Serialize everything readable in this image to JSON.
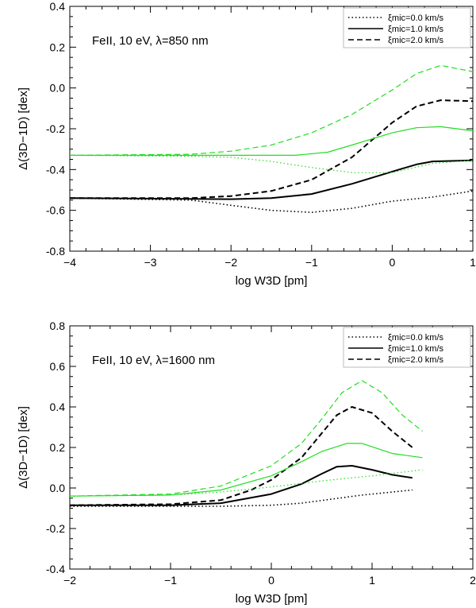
{
  "chart_data": [
    {
      "type": "line",
      "annotation": "FeII, 10 eV, λ=850 nm",
      "xlabel": "log W3D [pm]",
      "ylabel": "Δ(3D−1D) [dex]",
      "xlim": [
        -4,
        1
      ],
      "ylim": [
        -0.8,
        0.4
      ],
      "xticks": [
        -4,
        -3,
        -2,
        -1,
        0,
        1
      ],
      "xtick_labels": [
        "−4",
        "−3",
        "−2",
        "−1",
        "0",
        "1"
      ],
      "yticks": [
        -0.8,
        -0.6,
        -0.4,
        -0.2,
        0.0,
        0.2,
        0.4
      ],
      "ytick_labels": [
        "-0.8",
        "-0.6",
        "-0.4",
        "-0.2",
        "0.0",
        "0.2",
        "0.4"
      ],
      "legend": {
        "position": "top-right",
        "entries": [
          {
            "label": "ξmic=0.0 km/s",
            "style": "dotted"
          },
          {
            "label": "ξmic=1.0 km/s",
            "style": "solid"
          },
          {
            "label": "ξmic=2.0 km/s",
            "style": "dashed"
          }
        ]
      },
      "series": [
        {
          "name": "ξmic=0.0 km/s, 1",
          "color": "#000000",
          "style": "dotted",
          "width": 1.6,
          "x": [
            -4,
            -2.5,
            -2,
            -1.5,
            -1,
            -0.5,
            0,
            0.5,
            1
          ],
          "y": [
            -0.54,
            -0.55,
            -0.575,
            -0.6,
            -0.61,
            -0.59,
            -0.555,
            -0.535,
            -0.505
          ]
        },
        {
          "name": "ξmic=1.0 km/s, 1",
          "color": "#000000",
          "style": "solid",
          "width": 2,
          "x": [
            -4,
            -2,
            -1.5,
            -1,
            -0.5,
            0,
            0.3,
            0.5,
            1
          ],
          "y": [
            -0.54,
            -0.545,
            -0.54,
            -0.52,
            -0.47,
            -0.41,
            -0.375,
            -0.36,
            -0.355
          ]
        },
        {
          "name": "ξmic=2.0 km/s, 1",
          "color": "#000000",
          "style": "dashed",
          "width": 2,
          "x": [
            -4,
            -2.5,
            -2,
            -1.5,
            -1,
            -0.5,
            0,
            0.3,
            0.6,
            1
          ],
          "y": [
            -0.54,
            -0.54,
            -0.53,
            -0.505,
            -0.45,
            -0.34,
            -0.17,
            -0.09,
            -0.06,
            -0.065
          ]
        },
        {
          "name": "ξmic=0.0 km/s, 2",
          "color": "#22dd22",
          "style": "dotted",
          "width": 1.2,
          "x": [
            -4,
            -2.5,
            -2,
            -1.5,
            -1,
            -0.5,
            0,
            0.5,
            1
          ],
          "y": [
            -0.33,
            -0.335,
            -0.34,
            -0.36,
            -0.39,
            -0.415,
            -0.415,
            -0.37,
            -0.355
          ]
        },
        {
          "name": "ξmic=1.0 km/s, 2",
          "color": "#22dd22",
          "style": "solid",
          "width": 1.2,
          "x": [
            -4,
            -2,
            -1.2,
            -0.8,
            -0.5,
            0,
            0.3,
            0.6,
            1
          ],
          "y": [
            -0.33,
            -0.33,
            -0.33,
            -0.315,
            -0.28,
            -0.22,
            -0.195,
            -0.19,
            -0.21
          ]
        },
        {
          "name": "ξmic=2.0 km/s, 2",
          "color": "#22dd22",
          "style": "dashed",
          "width": 1.2,
          "x": [
            -4,
            -2.5,
            -2,
            -1.5,
            -1,
            -0.5,
            0,
            0.3,
            0.6,
            1
          ],
          "y": [
            -0.33,
            -0.325,
            -0.31,
            -0.28,
            -0.22,
            -0.13,
            -0.01,
            0.07,
            0.11,
            0.08
          ]
        }
      ]
    },
    {
      "type": "line",
      "annotation": "FeII, 10 eV, λ=1600 nm",
      "xlabel": "log W3D [pm]",
      "ylabel": "Δ(3D−1D) [dex]",
      "xlim": [
        -2,
        2
      ],
      "ylim": [
        -0.4,
        0.8
      ],
      "xticks": [
        -2,
        -1,
        0,
        1,
        2
      ],
      "xtick_labels": [
        "−2",
        "−1",
        "0",
        "1",
        "2"
      ],
      "yticks": [
        -0.4,
        -0.2,
        0.0,
        0.2,
        0.4,
        0.6,
        0.8
      ],
      "ytick_labels": [
        "-0.4",
        "-0.2",
        "0.0",
        "0.2",
        "0.4",
        "0.6",
        "0.8"
      ],
      "legend": {
        "position": "top-right",
        "entries": [
          {
            "label": "ξmic=0.0 km/s",
            "style": "dotted"
          },
          {
            "label": "ξmic=1.0 km/s",
            "style": "solid"
          },
          {
            "label": "ξmic=2.0 km/s",
            "style": "dashed"
          }
        ]
      },
      "series": [
        {
          "name": "ξmic=0.0 km/s, 1",
          "color": "#000000",
          "style": "dotted",
          "width": 1.6,
          "x": [
            -2,
            -1,
            -0.5,
            0,
            0.3,
            0.6,
            0.9,
            1.2,
            1.4
          ],
          "y": [
            -0.09,
            -0.09,
            -0.09,
            -0.085,
            -0.075,
            -0.055,
            -0.035,
            -0.02,
            -0.01
          ]
        },
        {
          "name": "ξmic=1.0 km/s, 1",
          "color": "#000000",
          "style": "solid",
          "width": 2,
          "x": [
            -2,
            -1,
            -0.5,
            0,
            0.3,
            0.5,
            0.65,
            0.8,
            1,
            1.2,
            1.4
          ],
          "y": [
            -0.085,
            -0.085,
            -0.075,
            -0.03,
            0.02,
            0.07,
            0.105,
            0.11,
            0.09,
            0.065,
            0.05
          ]
        },
        {
          "name": "ξmic=2.0 km/s, 1",
          "color": "#000000",
          "style": "dashed",
          "width": 2,
          "x": [
            -2,
            -1,
            -0.5,
            -0.2,
            0,
            0.3,
            0.5,
            0.65,
            0.8,
            1,
            1.2,
            1.4
          ],
          "y": [
            -0.085,
            -0.08,
            -0.06,
            -0.01,
            0.04,
            0.15,
            0.27,
            0.36,
            0.4,
            0.37,
            0.28,
            0.2
          ]
        },
        {
          "name": "ξmic=0.0 km/s, 2",
          "color": "#22dd22",
          "style": "dotted",
          "width": 1.2,
          "x": [
            -2,
            -1,
            -0.5,
            0,
            0.5,
            1,
            1.5
          ],
          "y": [
            -0.04,
            -0.035,
            -0.02,
            0.005,
            0.035,
            0.06,
            0.09
          ]
        },
        {
          "name": "ξmic=1.0 km/s, 2",
          "color": "#22dd22",
          "style": "solid",
          "width": 1.2,
          "x": [
            -2,
            -1,
            -0.5,
            0,
            0.3,
            0.5,
            0.75,
            0.9,
            1.2,
            1.5
          ],
          "y": [
            -0.04,
            -0.035,
            -0.01,
            0.06,
            0.13,
            0.18,
            0.22,
            0.22,
            0.17,
            0.15
          ]
        },
        {
          "name": "ξmic=2.0 km/s, 2",
          "color": "#22dd22",
          "style": "dashed",
          "width": 1.2,
          "x": [
            -2,
            -1,
            -0.5,
            0,
            0.3,
            0.5,
            0.7,
            0.9,
            1.1,
            1.3,
            1.5
          ],
          "y": [
            -0.04,
            -0.03,
            0.01,
            0.11,
            0.22,
            0.34,
            0.47,
            0.53,
            0.47,
            0.36,
            0.28
          ]
        }
      ]
    }
  ]
}
